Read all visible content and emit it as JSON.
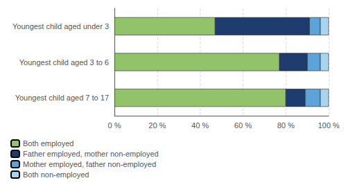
{
  "chart_data": {
    "type": "bar",
    "orientation": "horizontal",
    "stacked": true,
    "categories": [
      "Youngest child aged under 3",
      "Youngest child aged 3 to 6",
      "Youngest child aged 7 to 17"
    ],
    "series": [
      {
        "name": "Both employed",
        "color": "#92c36b",
        "values": [
          47,
          77,
          80
        ]
      },
      {
        "name": "Father employed, mother non-employed",
        "color": "#1f3c6e",
        "values": [
          44,
          13,
          9
        ]
      },
      {
        "name": "Mother employed, father non-employed",
        "color": "#5ba3d9",
        "values": [
          5,
          6,
          7
        ]
      },
      {
        "name": "Both non-employed",
        "color": "#a8d4f0",
        "values": [
          4,
          4,
          4
        ]
      }
    ],
    "xlim": [
      0,
      100
    ],
    "xticks": [
      {
        "value": 0,
        "label": "0 %"
      },
      {
        "value": 20,
        "label": "20 %"
      },
      {
        "value": 40,
        "label": "40 %"
      },
      {
        "value": 60,
        "label": "60 %"
      },
      {
        "value": 80,
        "label": "80 %"
      },
      {
        "value": 100,
        "label": "100 %"
      }
    ],
    "grid": true,
    "legend": "lower left"
  }
}
